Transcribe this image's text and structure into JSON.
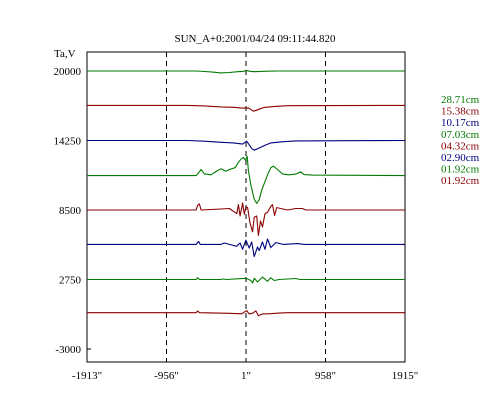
{
  "chart_data": {
    "type": "line",
    "title": "SUN_A+0:2001/04/24 09:11:44.820",
    "ylabel": "Ta,V",
    "xlabel": "",
    "x_ticks": [
      {
        "label": "-1913\"",
        "value": -1913
      },
      {
        "label": "-956\"",
        "value": -956
      },
      {
        "label": "1\"",
        "value": 1
      },
      {
        "label": "958\"",
        "value": 958
      },
      {
        "label": "1915\"",
        "value": 1915
      }
    ],
    "y_ticks": [
      {
        "label": "20000",
        "value": 20000
      },
      {
        "label": "14250",
        "value": 14250
      },
      {
        "label": "8500",
        "value": 8500
      },
      {
        "label": "2750",
        "value": 2750
      },
      {
        "label": "-3000",
        "value": -3000
      }
    ],
    "xlim": [
      -1913,
      1915
    ],
    "ylim": [
      -3000,
      22000
    ],
    "vertical_guides": [
      -956,
      1,
      958
    ],
    "legend_position": "right",
    "series": [
      {
        "name": "28.71cm",
        "color": "#007a00",
        "baseline": 20000,
        "points": [
          [
            -1913,
            0
          ],
          [
            -600,
            0
          ],
          [
            -500,
            -40
          ],
          [
            -400,
            -90
          ],
          [
            -300,
            -160
          ],
          [
            -200,
            -120
          ],
          [
            -100,
            -60
          ],
          [
            -30,
            -30
          ],
          [
            0,
            60
          ],
          [
            40,
            -20
          ],
          [
            100,
            -60
          ],
          [
            250,
            -20
          ],
          [
            400,
            0
          ],
          [
            1915,
            0
          ]
        ]
      },
      {
        "name": "15.38cm",
        "color": "#8b0000",
        "baseline": 17150,
        "points": [
          [
            -1913,
            0
          ],
          [
            -700,
            0
          ],
          [
            -500,
            -40
          ],
          [
            -300,
            -120
          ],
          [
            -150,
            -150
          ],
          [
            -50,
            -220
          ],
          [
            30,
            -200
          ],
          [
            90,
            -480
          ],
          [
            140,
            -360
          ],
          [
            220,
            -160
          ],
          [
            350,
            -80
          ],
          [
            500,
            -20
          ],
          [
            1915,
            0
          ]
        ]
      },
      {
        "name": "10.17cm",
        "color": "#000080",
        "baseline": 14250,
        "points": [
          [
            -1913,
            0
          ],
          [
            -700,
            0
          ],
          [
            -500,
            -60
          ],
          [
            -300,
            -150
          ],
          [
            -150,
            -200
          ],
          [
            -40,
            -300
          ],
          [
            10,
            -60
          ],
          [
            45,
            -420
          ],
          [
            70,
            -650
          ],
          [
            100,
            -800
          ],
          [
            150,
            -650
          ],
          [
            220,
            -420
          ],
          [
            300,
            -200
          ],
          [
            450,
            -100
          ],
          [
            600,
            -30
          ],
          [
            1915,
            0
          ]
        ]
      },
      {
        "name": "07.03cm",
        "color": "#007a00",
        "baseline": 11350,
        "points": [
          [
            -1913,
            0
          ],
          [
            -600,
            0
          ],
          [
            -570,
            240
          ],
          [
            -540,
            500
          ],
          [
            -500,
            140
          ],
          [
            -420,
            60
          ],
          [
            -350,
            380
          ],
          [
            -300,
            560
          ],
          [
            -240,
            350
          ],
          [
            -200,
            500
          ],
          [
            -130,
            650
          ],
          [
            -90,
            1100
          ],
          [
            -60,
            1350
          ],
          [
            -30,
            1500
          ],
          [
            -5,
            1250
          ],
          [
            15,
            1600
          ],
          [
            30,
            400
          ],
          [
            60,
            -800
          ],
          [
            100,
            -1950
          ],
          [
            130,
            -2300
          ],
          [
            160,
            -2000
          ],
          [
            190,
            -1200
          ],
          [
            230,
            -500
          ],
          [
            260,
            50
          ],
          [
            300,
            650
          ],
          [
            330,
            780
          ],
          [
            380,
            500
          ],
          [
            440,
            140
          ],
          [
            520,
            60
          ],
          [
            600,
            120
          ],
          [
            660,
            300
          ],
          [
            700,
            80
          ],
          [
            800,
            40
          ],
          [
            1915,
            0
          ]
        ]
      },
      {
        "name": "04.32cm",
        "color": "#8b0000",
        "baseline": 8500,
        "points": [
          [
            -1913,
            0
          ],
          [
            -600,
            0
          ],
          [
            -580,
            400
          ],
          [
            -560,
            500
          ],
          [
            -540,
            0
          ],
          [
            -300,
            80
          ],
          [
            -200,
            120
          ],
          [
            -110,
            -300
          ],
          [
            -90,
            450
          ],
          [
            -70,
            -500
          ],
          [
            -40,
            580
          ],
          [
            -20,
            -350
          ],
          [
            0,
            250
          ],
          [
            20,
            200
          ],
          [
            50,
            -1100
          ],
          [
            80,
            -1800
          ],
          [
            100,
            -600
          ],
          [
            130,
            -500
          ],
          [
            150,
            -2100
          ],
          [
            175,
            -900
          ],
          [
            200,
            -1400
          ],
          [
            230,
            -300
          ],
          [
            260,
            -200
          ],
          [
            300,
            300
          ],
          [
            320,
            450
          ],
          [
            345,
            -450
          ],
          [
            370,
            200
          ],
          [
            420,
            120
          ],
          [
            500,
            0
          ],
          [
            600,
            120
          ],
          [
            680,
            120
          ],
          [
            720,
            0
          ],
          [
            1915,
            0
          ]
        ]
      },
      {
        "name": "02.90cm",
        "color": "#000080",
        "baseline": 5650,
        "points": [
          [
            -1913,
            0
          ],
          [
            -600,
            0
          ],
          [
            -570,
            250
          ],
          [
            -550,
            0
          ],
          [
            -300,
            0
          ],
          [
            -260,
            120
          ],
          [
            -200,
            0
          ],
          [
            -110,
            -150
          ],
          [
            -90,
            0
          ],
          [
            -70,
            120
          ],
          [
            -40,
            -400
          ],
          [
            -20,
            0
          ],
          [
            0,
            350
          ],
          [
            40,
            -300
          ],
          [
            70,
            200
          ],
          [
            100,
            -1000
          ],
          [
            120,
            -600
          ],
          [
            140,
            -200
          ],
          [
            160,
            -500
          ],
          [
            200,
            200
          ],
          [
            230,
            -400
          ],
          [
            260,
            450
          ],
          [
            300,
            -250
          ],
          [
            360,
            150
          ],
          [
            450,
            0
          ],
          [
            620,
            70
          ],
          [
            700,
            0
          ],
          [
            1915,
            0
          ]
        ]
      },
      {
        "name": "01.92cm",
        "color": "#007a00",
        "baseline": 2750,
        "points": [
          [
            -1913,
            0
          ],
          [
            -600,
            0
          ],
          [
            -580,
            150
          ],
          [
            -560,
            0
          ],
          [
            -300,
            0
          ],
          [
            -270,
            50
          ],
          [
            -240,
            0
          ],
          [
            0,
            100
          ],
          [
            60,
            -80
          ],
          [
            80,
            -300
          ],
          [
            100,
            100
          ],
          [
            140,
            -200
          ],
          [
            200,
            200
          ],
          [
            260,
            -150
          ],
          [
            300,
            150
          ],
          [
            340,
            -80
          ],
          [
            400,
            0
          ],
          [
            600,
            80
          ],
          [
            650,
            0
          ],
          [
            1915,
            0
          ]
        ]
      },
      {
        "name": "01.92cm",
        "color": "#8b0000",
        "baseline": 0,
        "points": [
          [
            -1913,
            0
          ],
          [
            -600,
            0
          ],
          [
            -580,
            150
          ],
          [
            -560,
            0
          ],
          [
            -200,
            -50
          ],
          [
            -50,
            -90
          ],
          [
            -20,
            50
          ],
          [
            10,
            180
          ],
          [
            40,
            -100
          ],
          [
            80,
            -40
          ],
          [
            120,
            150
          ],
          [
            150,
            -250
          ],
          [
            200,
            -100
          ],
          [
            300,
            -80
          ],
          [
            400,
            -30
          ],
          [
            500,
            0
          ],
          [
            1915,
            0
          ]
        ]
      }
    ]
  }
}
